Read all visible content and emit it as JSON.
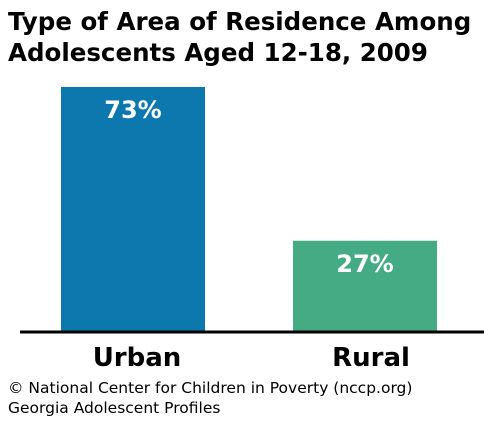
{
  "chart_data": {
    "type": "bar",
    "title_lines": [
      "Type of Area of Residence Among",
      "Adolescents Aged 12-18, 2009"
    ],
    "categories": [
      "Urban",
      "Rural"
    ],
    "values": [
      73,
      27
    ],
    "data_labels": [
      "73%",
      "27%"
    ],
    "colors": [
      "#0d78ad",
      "#44ab84"
    ],
    "ylim": [
      0,
      73
    ],
    "grid": false,
    "legend": "none"
  },
  "footer": {
    "line1": "© National Center for Children in Poverty (nccp.org)",
    "line2": "Georgia Adolescent Profiles"
  }
}
